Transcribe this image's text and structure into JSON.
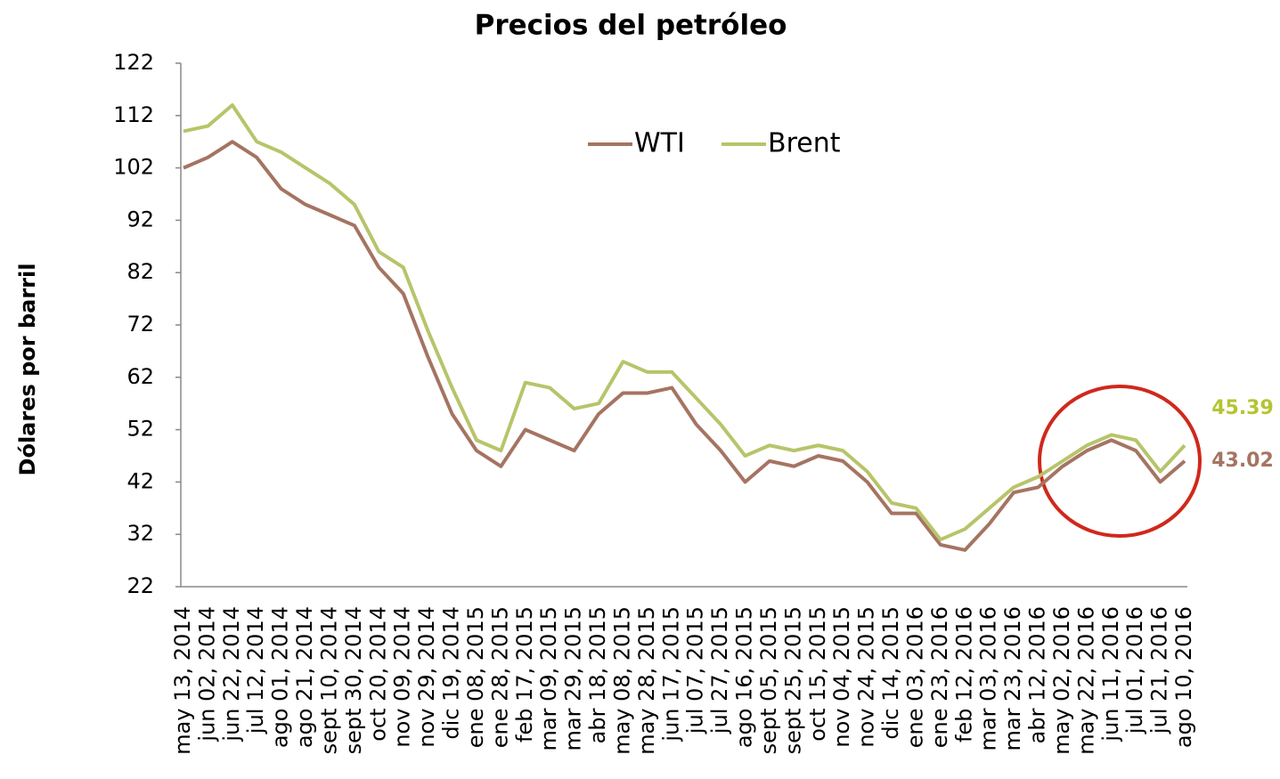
{
  "chart_data": {
    "type": "line",
    "title": "Precios del petróleo",
    "y_label": "Dólares por barril",
    "categories": [
      "may 13, 2014",
      "jun 02, 2014",
      "jun 22, 2014",
      "jul 12, 2014",
      "ago 01, 2014",
      "ago 21, 2014",
      "sept 10, 2014",
      "sept 30, 2014",
      "oct 20, 2014",
      "nov 09, 2014",
      "nov 29, 2014",
      "dic 19, 2014",
      "ene 08, 2015",
      "ene 28, 2015",
      "feb 17, 2015",
      "mar 09, 2015",
      "mar 29, 2015",
      "abr 18, 2015",
      "may 08, 2015",
      "may 28, 2015",
      "jun 17, 2015",
      "jul 07, 2015",
      "jul 27, 2015",
      "ago 16, 2015",
      "sept 05, 2015",
      "sept 25, 2015",
      "oct 15, 2015",
      "nov 04, 2015",
      "nov 24, 2015",
      "dic 14, 2015",
      "ene 03, 2016",
      "ene 23, 2016",
      "feb 12, 2016",
      "mar 03, 2016",
      "mar 23, 2016",
      "abr 12, 2016",
      "may 02, 2016",
      "may 22, 2016",
      "jun 11, 2016",
      "jul 01, 2016",
      "jul 21, 2016",
      "ago 10, 2016"
    ],
    "series": [
      {
        "name": "WTI",
        "color": "#a57462",
        "values": [
          102,
          104,
          107,
          104,
          98,
          95,
          93,
          91,
          83,
          78,
          66,
          55,
          48,
          45,
          52,
          50,
          48,
          55,
          59,
          59,
          60,
          53,
          48,
          42,
          46,
          45,
          47,
          46,
          42,
          36,
          36,
          30,
          29,
          34,
          40,
          41,
          45,
          48,
          50,
          48,
          42,
          46
        ]
      },
      {
        "name": "Brent",
        "color": "#b8c46a",
        "values": [
          109,
          110,
          114,
          107,
          105,
          102,
          99,
          95,
          86,
          83,
          71,
          60,
          50,
          48,
          61,
          60,
          56,
          57,
          65,
          63,
          63,
          58,
          53,
          47,
          49,
          48,
          49,
          48,
          44,
          38,
          37,
          31,
          33,
          37,
          41,
          43,
          46,
          49,
          51,
          50,
          44,
          49
        ]
      }
    ],
    "annotations": [
      {
        "text": "45.39",
        "color": "#b5c431"
      },
      {
        "text": "43.02",
        "color": "#a57462"
      }
    ],
    "ylim": [
      22,
      122
    ],
    "yticks": [
      22,
      32,
      42,
      52,
      62,
      72,
      82,
      92,
      102,
      112,
      122
    ]
  }
}
